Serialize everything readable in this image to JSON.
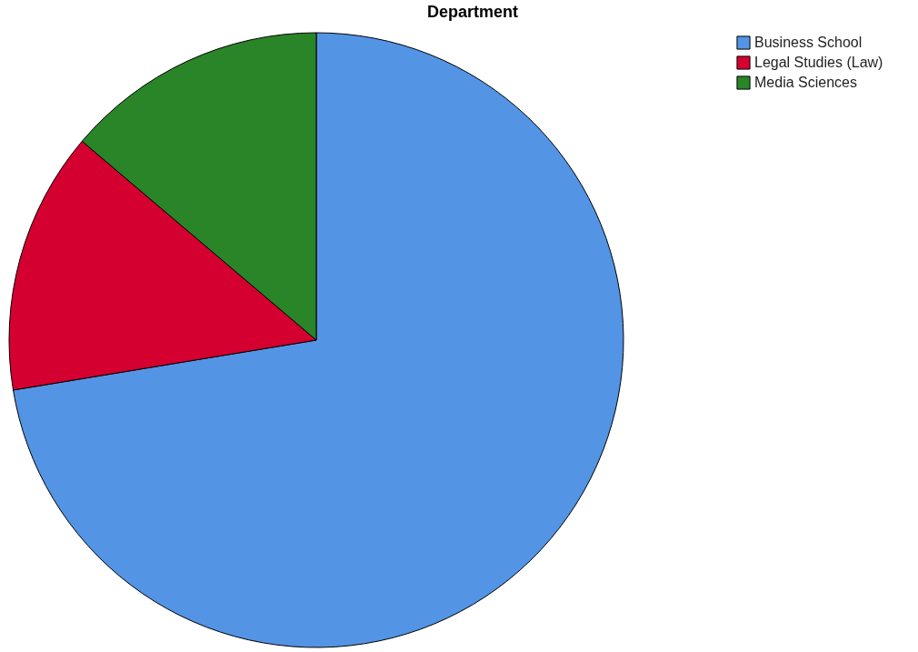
{
  "chart_data": {
    "type": "pie",
    "title": "Department",
    "categories": [
      "Business School",
      "Legal Studies (Law)",
      "Media Sciences"
    ],
    "values": [
      72.4,
      13.8,
      13.8
    ],
    "colors": [
      "#5394e4",
      "#d40030",
      "#2a8428"
    ],
    "legend": "top right"
  }
}
